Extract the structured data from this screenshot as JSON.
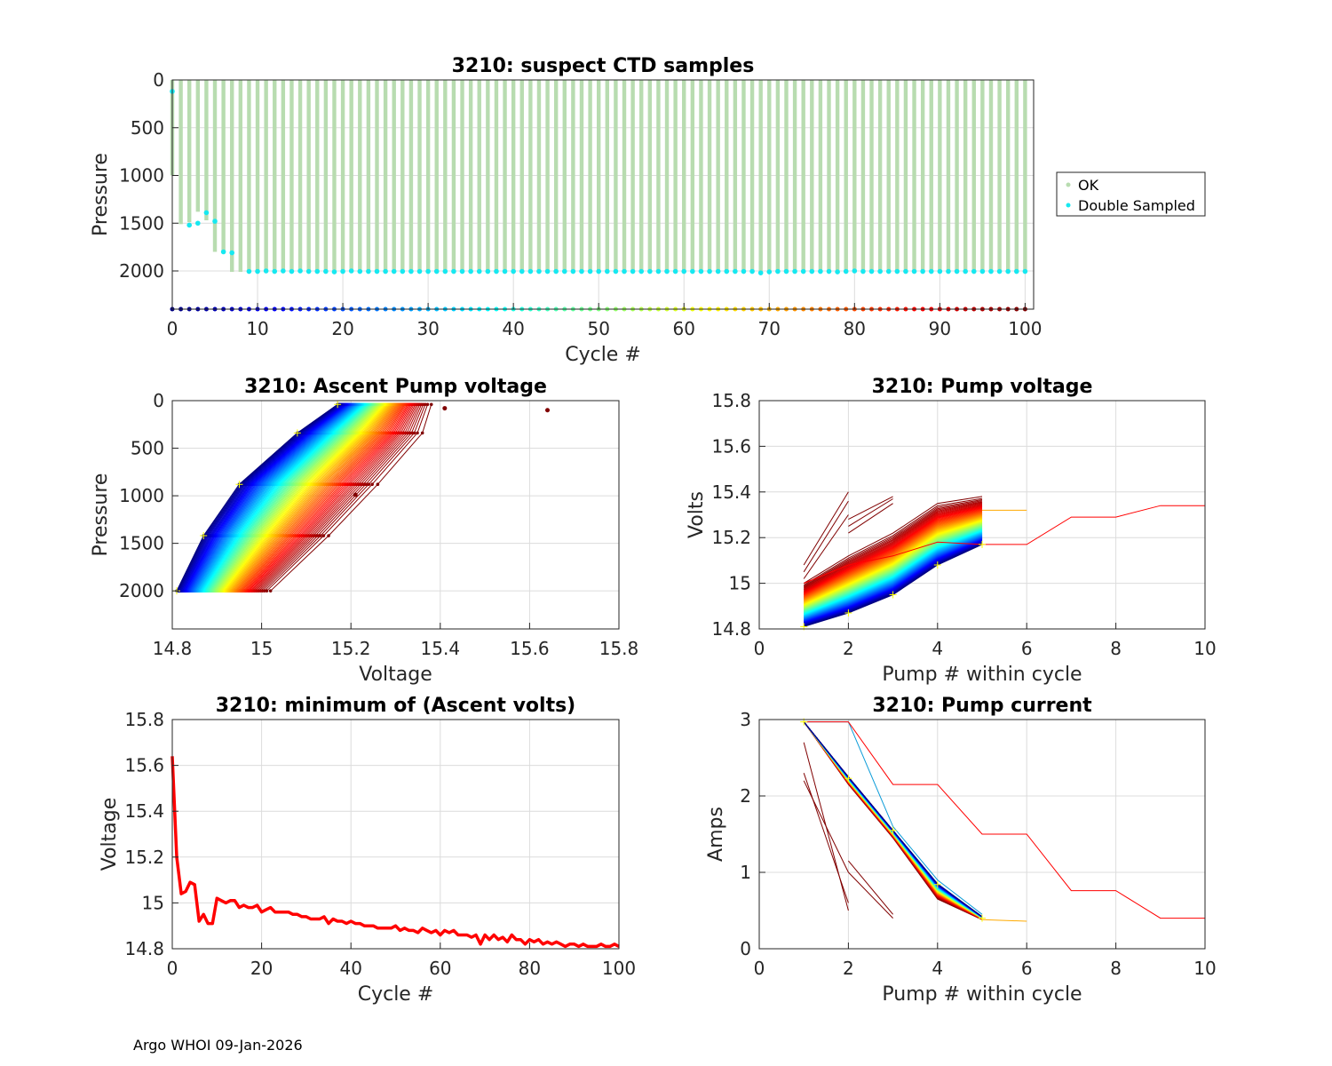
{
  "footer": "Argo WHOI 09-Jan-2026",
  "colors": {
    "ok": "#b8dcb0",
    "double": "#17e8f0",
    "marker": "#ffff00",
    "line_red": "#ff0000"
  },
  "chart_data": [
    {
      "id": "ctd",
      "type": "scatter",
      "title": "3210: suspect CTD samples",
      "xlabel": "Cycle #",
      "ylabel": "Pressure",
      "xlim": [
        0,
        101
      ],
      "ylim": [
        2400,
        0
      ],
      "xticks": [
        0,
        10,
        20,
        30,
        40,
        50,
        60,
        70,
        80,
        90,
        100
      ],
      "yticks": [
        0,
        500,
        1000,
        1500,
        2000
      ],
      "legend": [
        "OK",
        "Double Sampled"
      ],
      "legend_position": "outside-right",
      "ok_profile_max_pressure": [
        1000,
        1510,
        1490,
        1380,
        1470,
        1800,
        1810,
        2010
      ],
      "ok_profile_default_max_pressure": 2010,
      "double_sampled_points": [
        [
          0,
          120
        ],
        [
          2,
          1520
        ],
        [
          3,
          1500
        ],
        [
          4,
          1390
        ],
        [
          5,
          1480
        ],
        [
          6,
          1800
        ],
        [
          7,
          1810
        ],
        [
          11,
          2000
        ],
        [
          13,
          2000
        ],
        [
          15,
          2000
        ],
        [
          19,
          2010
        ],
        [
          21,
          2000
        ],
        [
          69,
          2020
        ],
        [
          70,
          2010
        ],
        [
          78,
          2010
        ],
        [
          80,
          2000
        ]
      ],
      "double_sampled_surface_pressure": 2005,
      "cycle_marker_pressure": 2400,
      "n_cycles": 100
    },
    {
      "id": "ascent",
      "type": "line",
      "title": "3210: Ascent Pump voltage",
      "xlabel": "Voltage",
      "ylabel": "Pressure",
      "xlim": [
        14.8,
        15.8
      ],
      "ylim": [
        2400,
        0
      ],
      "xticks": [
        14.8,
        15,
        15.2,
        15.4,
        15.6,
        15.8
      ],
      "yticks": [
        0,
        500,
        1000,
        1500,
        2000
      ],
      "pressures": [
        2000,
        1420,
        880,
        340,
        40
      ],
      "first_cycle_voltages": [
        15.02,
        15.15,
        15.26,
        15.36,
        15.38
      ],
      "last_cycle_voltages": [
        14.81,
        14.87,
        14.95,
        15.08,
        15.17
      ],
      "n_cycles": 100,
      "outliers": [
        [
          15.64,
          100
        ],
        [
          15.41,
          80
        ],
        [
          15.21,
          990
        ]
      ]
    },
    {
      "id": "pumpv",
      "type": "line",
      "title": "3210: Pump voltage",
      "xlabel": "Pump # within cycle",
      "ylabel": "Volts",
      "xlim": [
        0,
        10
      ],
      "ylim": [
        14.8,
        15.8
      ],
      "xticks": [
        0,
        2,
        4,
        6,
        8,
        10
      ],
      "yticks": [
        14.8,
        15,
        15.2,
        15.4,
        15.6,
        15.8
      ],
      "pumps": [
        1,
        2,
        3,
        4,
        5
      ],
      "first_cycle_volts": [
        15.0,
        15.12,
        15.22,
        15.35,
        15.38
      ],
      "last_cycle_volts": [
        14.81,
        14.87,
        14.95,
        15.08,
        15.17
      ],
      "n_cycles": 100,
      "early_cycle_lines": [
        {
          "x": [
            1,
            2
          ],
          "y": [
            15.08,
            15.4
          ]
        },
        {
          "x": [
            1,
            2
          ],
          "y": [
            15.05,
            15.36
          ]
        },
        {
          "x": [
            1,
            2
          ],
          "y": [
            15.02,
            15.3
          ]
        },
        {
          "x": [
            2,
            3
          ],
          "y": [
            15.28,
            15.38
          ]
        },
        {
          "x": [
            2,
            3
          ],
          "y": [
            15.25,
            15.37
          ]
        },
        {
          "x": [
            2,
            3
          ],
          "y": [
            15.22,
            15.35
          ]
        }
      ],
      "long_cycle": {
        "x": [
          1,
          2,
          3,
          4,
          5,
          6,
          7,
          8,
          9,
          10
        ],
        "y": [
          15.0,
          15.08,
          15.12,
          15.18,
          15.17,
          15.17,
          15.29,
          15.29,
          15.34,
          15.34
        ]
      },
      "orange_cycle": {
        "x": [
          5,
          6
        ],
        "y": [
          15.32,
          15.32
        ]
      },
      "yellow_markers": [
        [
          1,
          14.81
        ],
        [
          2,
          14.87
        ],
        [
          3,
          14.95
        ],
        [
          4,
          15.08
        ],
        [
          5,
          15.17
        ]
      ]
    },
    {
      "id": "minv",
      "type": "line",
      "title": "3210: minimum of (Ascent volts)",
      "xlabel": "Cycle #",
      "ylabel": "Voltage",
      "xlim": [
        0,
        100
      ],
      "ylim": [
        14.8,
        15.8
      ],
      "xticks": [
        0,
        20,
        40,
        60,
        80,
        100
      ],
      "yticks": [
        14.8,
        15,
        15.2,
        15.4,
        15.6,
        15.8
      ],
      "x": [
        0,
        1,
        2,
        3,
        4,
        5,
        6,
        7,
        8,
        9,
        10,
        11,
        12,
        13,
        14,
        15,
        16,
        17,
        18,
        19,
        20,
        21,
        22,
        23,
        24,
        25,
        26,
        27,
        28,
        29,
        30,
        31,
        32,
        33,
        34,
        35,
        36,
        37,
        38,
        39,
        40,
        41,
        42,
        43,
        44,
        45,
        46,
        47,
        48,
        49,
        50,
        51,
        52,
        53,
        54,
        55,
        56,
        57,
        58,
        59,
        60,
        61,
        62,
        63,
        64,
        65,
        66,
        67,
        68,
        69,
        70,
        71,
        72,
        73,
        74,
        75,
        76,
        77,
        78,
        79,
        80,
        81,
        82,
        83,
        84,
        85,
        86,
        87,
        88,
        89,
        90,
        91,
        92,
        93,
        94,
        95,
        96,
        97,
        98,
        99,
        100
      ],
      "values": [
        15.64,
        15.2,
        15.04,
        15.05,
        15.09,
        15.08,
        14.92,
        14.95,
        14.91,
        14.91,
        15.02,
        15.01,
        15.0,
        15.01,
        15.01,
        14.98,
        14.99,
        14.98,
        14.98,
        14.99,
        14.96,
        14.97,
        14.98,
        14.96,
        14.96,
        14.96,
        14.96,
        14.95,
        14.95,
        14.94,
        14.94,
        14.93,
        14.93,
        14.93,
        14.94,
        14.91,
        14.93,
        14.92,
        14.92,
        14.91,
        14.92,
        14.91,
        14.91,
        14.9,
        14.9,
        14.9,
        14.89,
        14.89,
        14.89,
        14.89,
        14.9,
        14.88,
        14.89,
        14.88,
        14.88,
        14.87,
        14.89,
        14.88,
        14.87,
        14.88,
        14.86,
        14.88,
        14.87,
        14.88,
        14.86,
        14.86,
        14.86,
        14.85,
        14.86,
        14.82,
        14.86,
        14.84,
        14.86,
        14.84,
        14.85,
        14.83,
        14.86,
        14.84,
        14.84,
        14.82,
        14.84,
        14.83,
        14.84,
        14.82,
        14.83,
        14.82,
        14.83,
        14.82,
        14.81,
        14.82,
        14.82,
        14.81,
        14.82,
        14.81,
        14.81,
        14.81,
        14.82,
        14.81,
        14.81,
        14.82,
        14.81
      ]
    },
    {
      "id": "current",
      "type": "line",
      "title": "3210: Pump current",
      "xlabel": "Pump # within cycle",
      "ylabel": "Amps",
      "xlim": [
        0,
        10
      ],
      "ylim": [
        0,
        3
      ],
      "xticks": [
        0,
        2,
        4,
        6,
        8,
        10
      ],
      "yticks": [
        0,
        1,
        2,
        3
      ],
      "pumps": [
        1,
        2,
        3,
        4,
        5
      ],
      "first_cycle_amps": [
        2.97,
        2.15,
        1.45,
        0.65,
        0.38
      ],
      "last_cycle_amps": [
        2.97,
        2.25,
        1.55,
        0.85,
        0.42
      ],
      "n_cycles": 100,
      "early_cycle_lines": [
        {
          "x": [
            1,
            2
          ],
          "y": [
            2.7,
            0.5
          ]
        },
        {
          "x": [
            1,
            2
          ],
          "y": [
            2.3,
            0.6
          ]
        },
        {
          "x": [
            1,
            2
          ],
          "y": [
            2.2,
            1.0
          ]
        },
        {
          "x": [
            2,
            3
          ],
          "y": [
            1.0,
            0.4
          ]
        },
        {
          "x": [
            2,
            3
          ],
          "y": [
            1.15,
            0.45
          ]
        }
      ],
      "long_cycle": {
        "x": [
          1,
          2,
          3,
          4,
          5,
          6,
          7,
          8,
          9,
          10
        ],
        "y": [
          2.97,
          2.97,
          2.15,
          2.15,
          1.5,
          1.5,
          0.76,
          0.76,
          0.4,
          0.4
        ]
      },
      "cyan_cycle": {
        "x": [
          1,
          2,
          3,
          4,
          5
        ],
        "y": [
          2.97,
          2.97,
          1.6,
          0.9,
          0.45
        ]
      },
      "orange_cycle": {
        "x": [
          5,
          6
        ],
        "y": [
          0.38,
          0.36
        ]
      },
      "yellow_markers": [
        [
          1,
          2.97
        ],
        [
          2,
          2.23
        ],
        [
          3,
          1.55
        ],
        [
          4,
          0.84
        ],
        [
          5,
          0.4
        ]
      ]
    }
  ]
}
